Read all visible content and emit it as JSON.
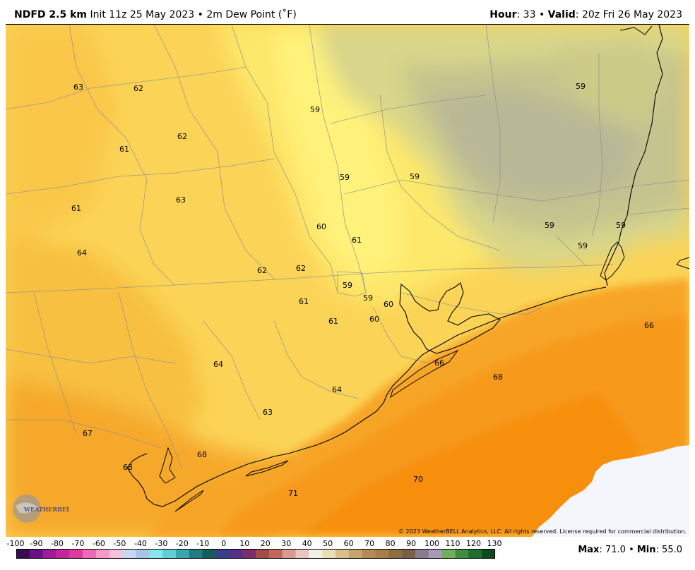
{
  "header": {
    "model": "NDFD 2.5 km",
    "init": "Init 11z 25 May 2023",
    "separator": "•",
    "field": "2m Dew Point (˚F)",
    "hour_label": "Hour",
    "hour_value": ": 33",
    "valid_label": "Valid",
    "valid_value": ": 20z Fri 26 May 2023"
  },
  "map": {
    "copyright": "© 2023 WeatherBELL Analytics, LLC. All rights reserved. License required for commercial distribution.",
    "logo_text": "WEATHERBELL",
    "values": [
      {
        "v": "63"
      },
      {
        "v": "62"
      },
      {
        "v": "59"
      },
      {
        "v": "59"
      },
      {
        "v": "62"
      },
      {
        "v": "61"
      },
      {
        "v": "59"
      },
      {
        "v": "59"
      },
      {
        "v": "63"
      },
      {
        "v": "61"
      },
      {
        "v": "60"
      },
      {
        "v": "61"
      },
      {
        "v": "59"
      },
      {
        "v": "59"
      },
      {
        "v": "59"
      },
      {
        "v": "64"
      },
      {
        "v": "62"
      },
      {
        "v": "62"
      },
      {
        "v": "59"
      },
      {
        "v": "59"
      },
      {
        "v": "61"
      },
      {
        "v": "60"
      },
      {
        "v": "61"
      },
      {
        "v": "60"
      },
      {
        "v": "66"
      },
      {
        "v": "66"
      },
      {
        "v": "64"
      },
      {
        "v": "68"
      },
      {
        "v": "64"
      },
      {
        "v": "63"
      },
      {
        "v": "67"
      },
      {
        "v": "68"
      },
      {
        "v": "68"
      },
      {
        "v": "70"
      },
      {
        "v": "71"
      }
    ]
  },
  "colorbar": {
    "ticks": [
      "-100",
      "-90",
      "-80",
      "-70",
      "-60",
      "-50",
      "-40",
      "-30",
      "-20",
      "-10",
      "0",
      "10",
      "20",
      "30",
      "40",
      "50",
      "60",
      "70",
      "80",
      "90",
      "100",
      "110",
      "120",
      "130"
    ],
    "colors": [
      "#3b0a54",
      "#6a0f8a",
      "#a01a9a",
      "#c2259a",
      "#df3b9f",
      "#ef6ab3",
      "#f49ac8",
      "#f3c3dd",
      "#c8d8f0",
      "#a6c6e8",
      "#86e6ef",
      "#5fd0d8",
      "#3aa6b0",
      "#1f7c80",
      "#155c5a",
      "#3a3f8c",
      "#55308a",
      "#7a2c6e",
      "#a34a4a",
      "#c0675e",
      "#d69a90",
      "#e9c6c0",
      "#f5efe8",
      "#eadfb3",
      "#d9c08a",
      "#c7a46a",
      "#b78a52",
      "#a77f46",
      "#8e6e3f",
      "#7a5f48",
      "#8a7a90",
      "#a69ab8",
      "#6fae5a",
      "#3f8e3f",
      "#1f6e2f",
      "#0e4a1e"
    ],
    "max_label": "Max",
    "max_value": ": 71.0",
    "sep": "•",
    "min_label": "Min",
    "min_value": ": 55.0"
  }
}
